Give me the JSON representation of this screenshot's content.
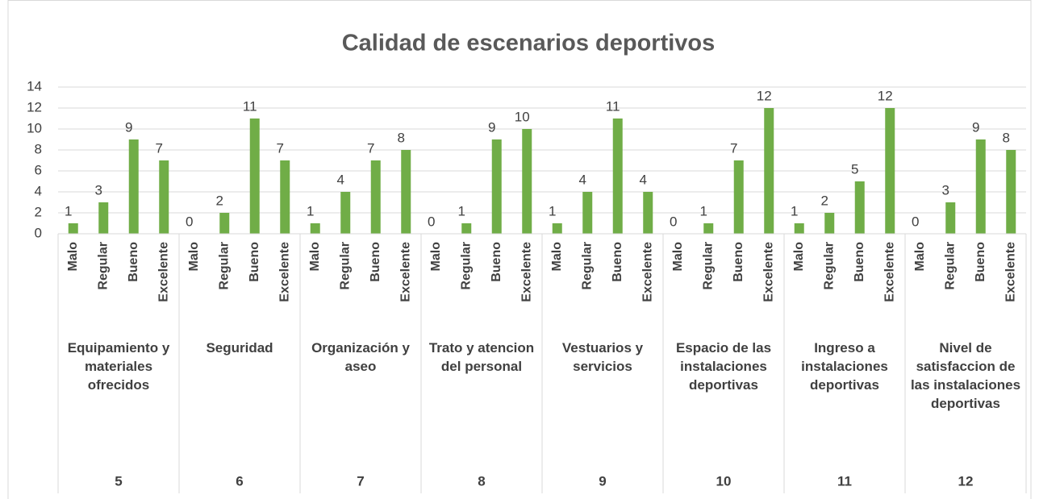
{
  "chart_data": {
    "type": "bar",
    "title": "Calidad de escenarios deportivos",
    "subcategories": [
      "Malo",
      "Regular",
      "Bueno",
      "Excelente"
    ],
    "groups": [
      {
        "number": 5,
        "label": "Equipamiento y materiales ofrecidos",
        "values": [
          1,
          3,
          9,
          7
        ]
      },
      {
        "number": 6,
        "label": "Seguridad",
        "values": [
          0,
          2,
          11,
          7
        ]
      },
      {
        "number": 7,
        "label": "Organización y aseo",
        "values": [
          1,
          4,
          7,
          8
        ]
      },
      {
        "number": 8,
        "label": "Trato y atencion del personal",
        "values": [
          0,
          1,
          9,
          10
        ]
      },
      {
        "number": 9,
        "label": "Vestuarios y servicios",
        "values": [
          1,
          4,
          11,
          4
        ]
      },
      {
        "number": 10,
        "label": "Espacio de las instalaciones deportivas",
        "values": [
          0,
          1,
          7,
          12
        ]
      },
      {
        "number": 11,
        "label": "Ingreso a instalaciones deportivas",
        "values": [
          1,
          2,
          5,
          12
        ]
      },
      {
        "number": 12,
        "label": "Nivel de satisfaccion de las instalaciones deportivas",
        "values": [
          0,
          3,
          9,
          8
        ]
      }
    ],
    "color": "#70ad47",
    "ylim": [
      0,
      14
    ],
    "yticks": [
      0,
      2,
      4,
      6,
      8,
      10,
      12,
      14
    ],
    "grid": true
  }
}
